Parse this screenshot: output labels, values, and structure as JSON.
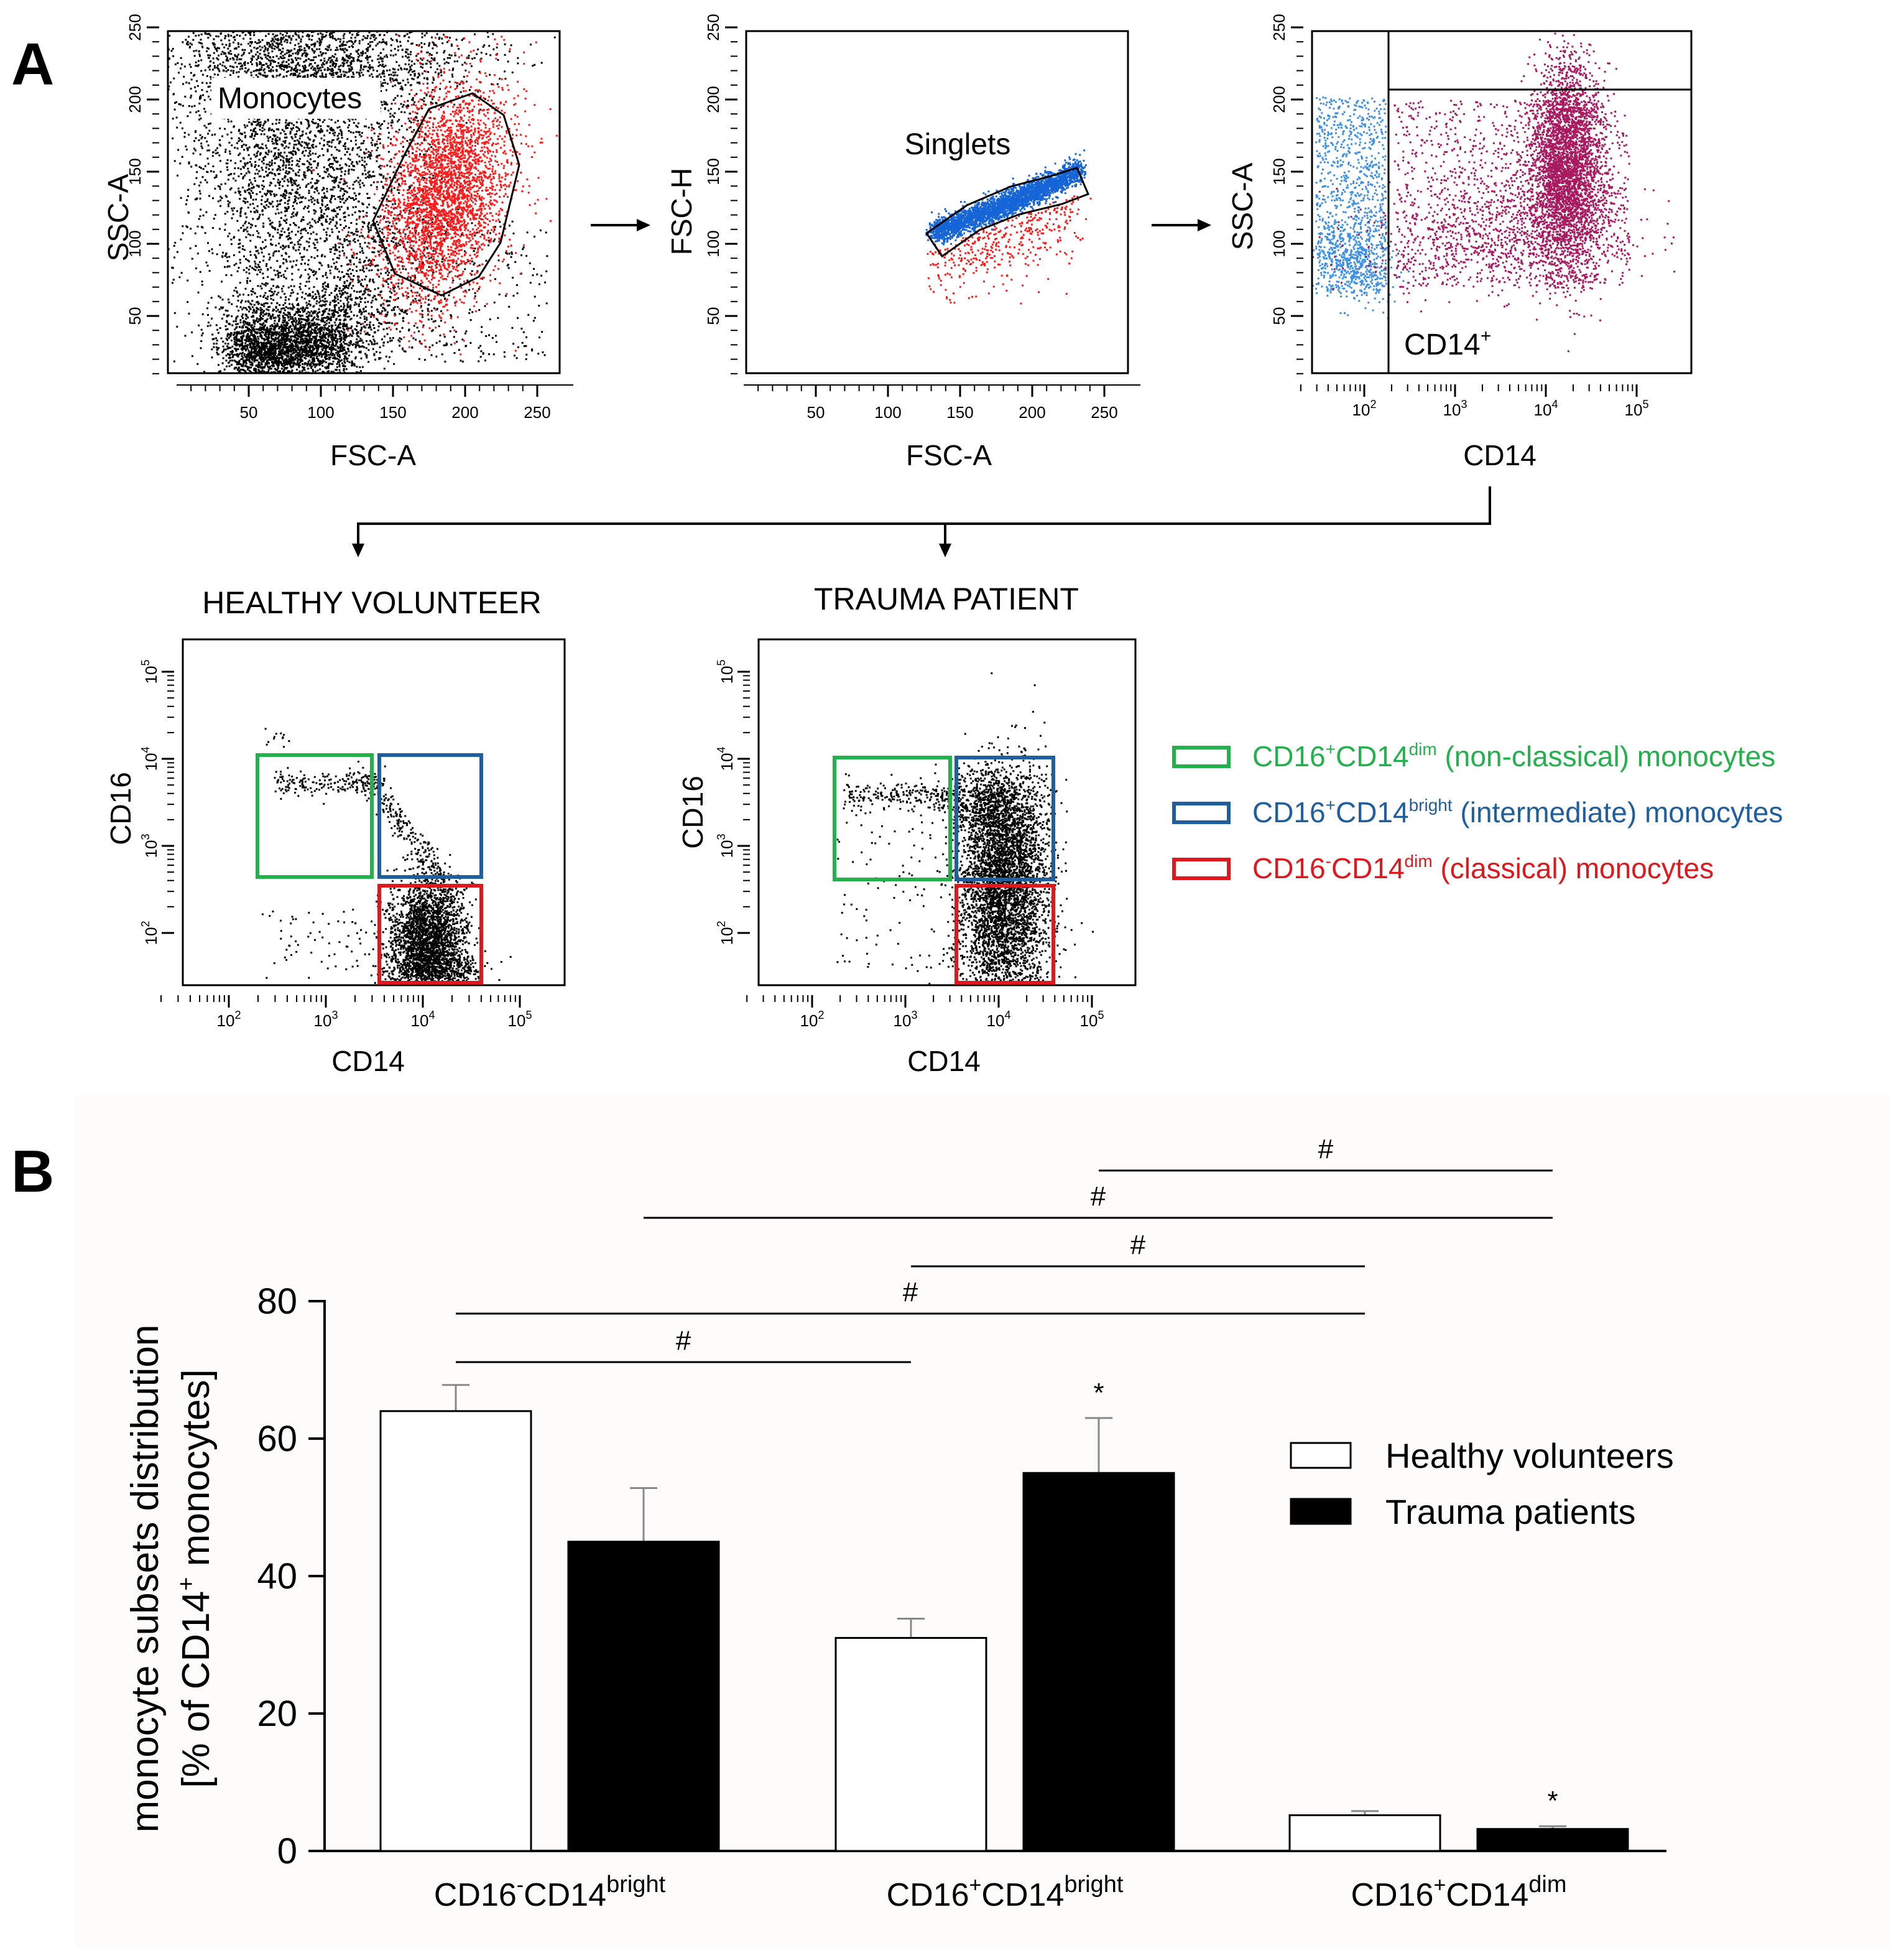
{
  "panel_a": {
    "letter": "A",
    "plots": [
      {
        "id": "monocyte-gate",
        "ylabel": "SSC-A",
        "xlabel": "FSC-A",
        "gate_label": "Monocytes",
        "xticks": [
          "50",
          "100",
          "150",
          "200",
          "250"
        ],
        "yticks": [
          "50",
          "100",
          "150",
          "200",
          "250"
        ]
      },
      {
        "id": "singlet-gate",
        "ylabel": "FSC-H",
        "xlabel": "FSC-A",
        "gate_label": "Singlets",
        "xticks": [
          "50",
          "100",
          "150",
          "200",
          "250"
        ],
        "yticks": [
          "50",
          "100",
          "150",
          "200",
          "250"
        ]
      },
      {
        "id": "cd14-gate",
        "ylabel": "SSC-A",
        "xlabel": "CD14",
        "gate_label": "CD14",
        "gate_label_sup": "+",
        "xticks": [
          "10",
          "10",
          "10",
          "10"
        ],
        "xtick_exps": [
          "2",
          "3",
          "4",
          "5"
        ],
        "yticks": [
          "50",
          "100",
          "150",
          "200",
          "250"
        ]
      }
    ],
    "subsets": [
      {
        "id": "healthy",
        "title": "HEALTHY VOLUNTEER",
        "ylabel": "CD16",
        "xlabel": "CD14",
        "xticks": [
          "10",
          "10",
          "10",
          "10"
        ],
        "xtick_exps": [
          "2",
          "3",
          "4",
          "5"
        ],
        "yticks": [
          "10",
          "10",
          "10",
          "10"
        ],
        "ytick_exps": [
          "2",
          "3",
          "4",
          "5"
        ]
      },
      {
        "id": "trauma",
        "title": "TRAUMA PATIENT",
        "ylabel": "CD16",
        "xlabel": "CD14",
        "xticks": [
          "10",
          "10",
          "10",
          "10"
        ],
        "xtick_exps": [
          "2",
          "3",
          "4",
          "5"
        ],
        "yticks": [
          "10",
          "10",
          "10",
          "10"
        ],
        "ytick_exps": [
          "2",
          "3",
          "4",
          "5"
        ]
      }
    ],
    "legend": [
      {
        "color": "#22b14c",
        "part1": "CD16",
        "sup1": "+",
        "part2": "CD14",
        "sup2": "dim",
        "rest": " (non-classical) monocytes"
      },
      {
        "color": "#1f5fa0",
        "part1": "CD16",
        "sup1": "+",
        "part2": "CD14",
        "sup2": "bright",
        "rest": " (intermediate) monocytes"
      },
      {
        "color": "#e0181d",
        "part1": "CD16",
        "sup1": "-",
        "part2": "CD14",
        "sup2": "dim",
        "rest": " (classical) monocytes"
      }
    ],
    "colors": {
      "black": "#000000",
      "red": "#ff1a1a",
      "blue": "#1565d8",
      "light_blue": "#3b8fe6",
      "magenta": "#a8195f",
      "pink": "#c0417a"
    }
  },
  "panel_b": {
    "letter": "B",
    "ylabel_line1": "monocyte subsets distribution",
    "ylabel_line2_a": "[% of CD14",
    "ylabel_line2_sup": "+",
    "ylabel_line2_b": " monocytes]",
    "legend": [
      {
        "label": "Healthy volunteers",
        "fill": "#ffffff"
      },
      {
        "label": "Trauma patients",
        "fill": "#000000"
      }
    ],
    "hash_mark": "#",
    "star_mark": "*"
  },
  "chart_data": {
    "type": "bar",
    "title": "",
    "xlabel": "",
    "ylabel": "monocyte subsets distribution [% of CD14+ monocytes]",
    "ylim": [
      0,
      80
    ],
    "yticks": [
      0,
      20,
      40,
      60,
      80
    ],
    "categories": [
      {
        "base1": "CD16",
        "sup1": "-",
        "base2": "CD14",
        "sup2": "bright"
      },
      {
        "base1": "CD16",
        "sup1": "+",
        "base2": "CD14",
        "sup2": "bright"
      },
      {
        "base1": "CD16",
        "sup1": "+",
        "base2": "CD14",
        "sup2": "dim"
      }
    ],
    "series": [
      {
        "name": "Healthy volunteers",
        "fill": "#ffffff",
        "values": [
          64,
          31,
          5.2
        ],
        "errors": [
          3.8,
          2.8,
          0.6
        ],
        "significance": [
          "",
          "",
          ""
        ]
      },
      {
        "name": "Trauma patients",
        "fill": "#000000",
        "values": [
          45,
          55,
          3.2
        ],
        "errors": [
          7.8,
          8,
          0.4
        ],
        "significance": [
          "",
          "*",
          "*"
        ]
      }
    ],
    "comparisons": [
      {
        "from": [
          0,
          0
        ],
        "to": [
          1,
          0
        ],
        "level": 0,
        "label": "#"
      },
      {
        "from": [
          0,
          0
        ],
        "to": [
          2,
          0
        ],
        "level": 1,
        "label": "#"
      },
      {
        "from": [
          1,
          0
        ],
        "to": [
          2,
          0
        ],
        "level": 2,
        "label": "#"
      },
      {
        "from": [
          0,
          1
        ],
        "to": [
          2,
          1
        ],
        "level": 3,
        "label": "#"
      },
      {
        "from": [
          1,
          1
        ],
        "to": [
          2,
          1
        ],
        "level": 4,
        "label": "#"
      }
    ]
  }
}
